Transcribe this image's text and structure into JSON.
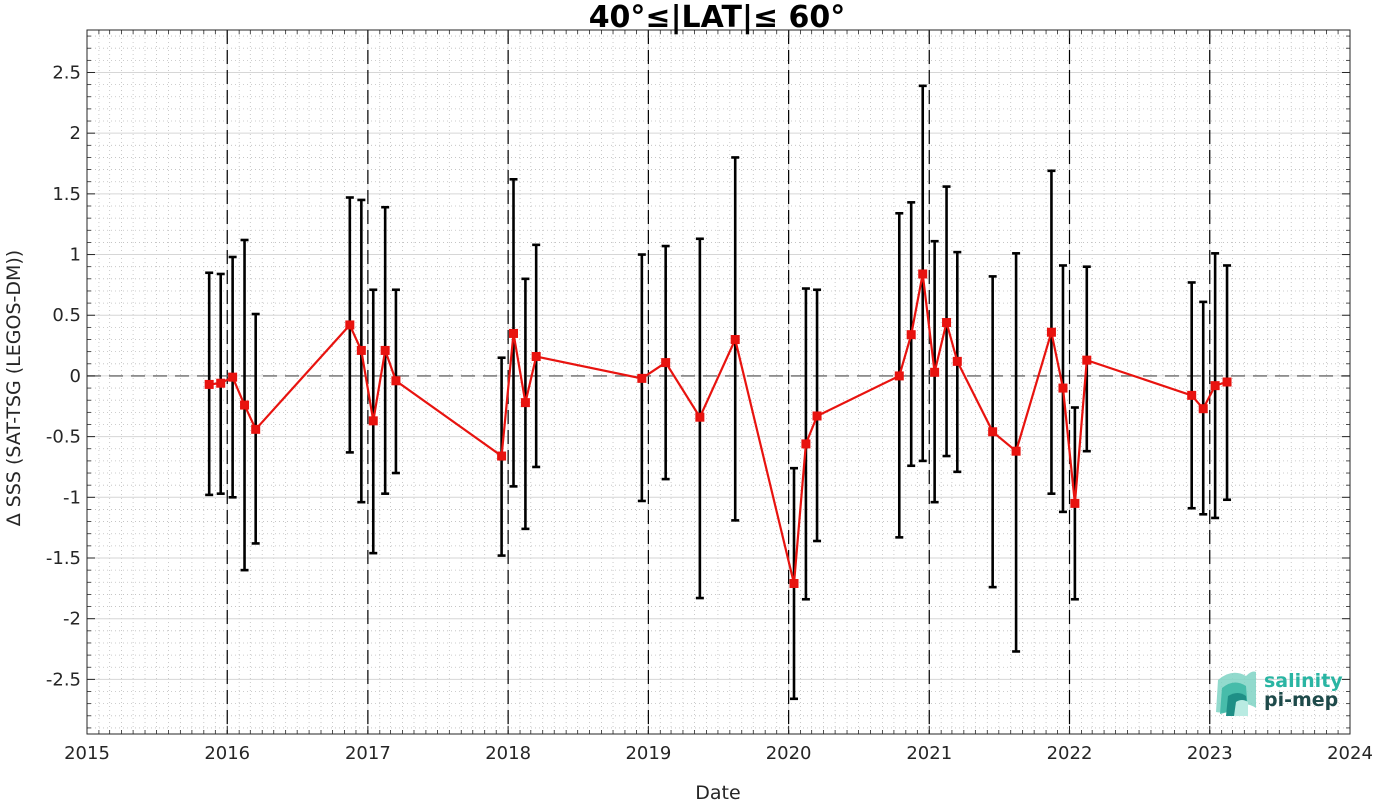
{
  "chart_data": {
    "type": "line",
    "title": "40°≤|LAT|≤ 60°",
    "xlabel": "Date",
    "ylabel": "Δ SSS (SAT-TSG (LEGOS-DM))",
    "xlim": [
      "2015-01-01",
      "2024-01-01"
    ],
    "ylim": [
      -2.95,
      2.85
    ],
    "xticks": [
      "2015",
      "2016",
      "2017",
      "2018",
      "2019",
      "2020",
      "2021",
      "2022",
      "2023",
      "2024"
    ],
    "yticks": [
      "-2.5",
      "-2",
      "-1.5",
      "-1",
      "-0.5",
      "0",
      "0.5",
      "1",
      "1.5",
      "2",
      "2.5"
    ],
    "grid": true,
    "minor_grid": true,
    "zero_line": true,
    "year_separators": [
      "2016",
      "2017",
      "2018",
      "2019",
      "2020",
      "2021",
      "2022",
      "2023"
    ],
    "colors": {
      "series": "#e8130f",
      "errorbar": "#000000",
      "logo_accent": "#2ab5a3",
      "logo_dark": "#1e4a4a"
    },
    "series": [
      {
        "x": [
          "2015-11-15",
          "2015-12-15",
          "2016-01-15",
          "2016-02-15",
          "2016-03-15",
          "2016-11-15",
          "2016-12-15",
          "2017-01-15",
          "2017-02-15",
          "2017-03-15",
          "2017-12-15",
          "2018-01-15",
          "2018-02-15",
          "2018-03-15",
          "2018-12-15",
          "2019-02-15",
          "2019-05-15",
          "2019-08-15",
          "2020-01-15",
          "2020-02-15",
          "2020-03-15",
          "2020-10-15",
          "2020-11-15",
          "2020-12-15",
          "2021-01-15",
          "2021-02-15",
          "2021-03-15",
          "2021-06-15",
          "2021-08-15",
          "2021-11-15",
          "2021-12-15",
          "2022-01-15",
          "2022-02-15",
          "2022-11-15",
          "2022-12-15",
          "2023-01-15",
          "2023-02-15"
        ],
        "y": [
          -0.07,
          -0.06,
          -0.01,
          -0.24,
          -0.44,
          0.42,
          0.21,
          -0.37,
          0.21,
          -0.04,
          -0.66,
          0.35,
          -0.22,
          0.16,
          -0.02,
          0.11,
          -0.34,
          0.3,
          -1.71,
          -0.56,
          -0.33,
          0.0,
          0.34,
          0.84,
          0.03,
          0.44,
          0.12,
          -0.46,
          -0.62,
          0.36,
          -0.1,
          -1.05,
          0.13,
          -0.16,
          -0.27,
          -0.08,
          -0.05
        ],
        "err_low": [
          -0.98,
          -0.97,
          -1.0,
          -1.6,
          -1.38,
          -0.63,
          -1.04,
          -1.46,
          -0.97,
          -0.8,
          -1.48,
          -0.91,
          -1.26,
          -0.75,
          -1.03,
          -0.85,
          -1.83,
          -1.19,
          -2.66,
          -1.84,
          -1.36,
          -1.33,
          -0.74,
          -0.7,
          -1.04,
          -0.66,
          -0.79,
          -1.74,
          -2.27,
          -0.97,
          -1.12,
          -1.84,
          -0.62,
          -1.09,
          -1.14,
          -1.17,
          -1.02
        ],
        "err_high": [
          0.85,
          0.84,
          0.98,
          1.12,
          0.51,
          1.47,
          1.45,
          0.71,
          1.39,
          0.71,
          0.15,
          1.62,
          0.8,
          1.08,
          1.0,
          1.07,
          1.13,
          1.8,
          -0.76,
          0.72,
          0.71,
          1.34,
          1.43,
          2.39,
          1.11,
          1.56,
          1.02,
          0.82,
          1.01,
          1.69,
          0.91,
          -0.26,
          0.9,
          0.77,
          0.61,
          1.01,
          0.91
        ]
      }
    ]
  },
  "logo": {
    "line1": "salinity",
    "line2": "pi-mep"
  }
}
